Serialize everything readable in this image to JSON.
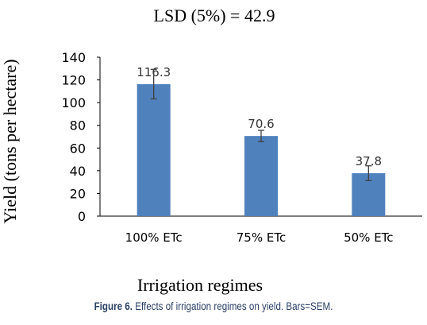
{
  "chart_data": {
    "type": "bar",
    "title": "LSD  (5%) = 42.9",
    "xlabel": "Irrigation regimes",
    "ylabel": "Yield (tons per hectare)",
    "categories": [
      "100% ETc",
      "75% ETc",
      "50% ETc"
    ],
    "values": [
      116.3,
      70.6,
      37.8
    ],
    "data_labels": [
      "116.3",
      "70.6",
      "37.8"
    ],
    "error": [
      13,
      5,
      6.5
    ],
    "ylim": [
      0,
      140
    ],
    "yticks": [
      0,
      20,
      40,
      60,
      80,
      100,
      120,
      140
    ],
    "grid": false,
    "bar_color": "#4f81bd"
  },
  "caption": {
    "label": "Figure 6.",
    "text": " Effects of irrigation regimes on yield. Bars=SEM."
  }
}
